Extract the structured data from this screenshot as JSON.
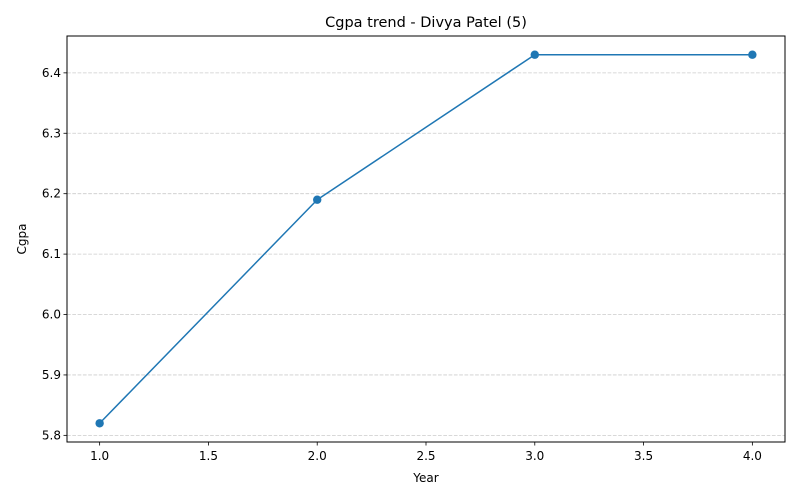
{
  "chart_data": {
    "type": "line",
    "title": "Cgpa trend - Divya Patel (5)",
    "xlabel": "Year",
    "ylabel": "Cgpa",
    "x": [
      1.0,
      2.0,
      3.0,
      4.0
    ],
    "series": [
      {
        "values": [
          5.82,
          6.19,
          6.43,
          6.43
        ],
        "color": "#1f77b4",
        "marker": "circle"
      }
    ],
    "xlim": [
      0.85,
      4.15
    ],
    "ylim": [
      5.789,
      6.461
    ],
    "xticks": [
      1.0,
      1.5,
      2.0,
      2.5,
      3.0,
      3.5,
      4.0
    ],
    "xtick_labels": [
      "1.0",
      "1.5",
      "2.0",
      "2.5",
      "3.0",
      "3.5",
      "4.0"
    ],
    "yticks": [
      5.8,
      5.9,
      6.0,
      6.1,
      6.2,
      6.3,
      6.4
    ],
    "ytick_labels": [
      "5.8",
      "5.9",
      "6.0",
      "6.1",
      "6.2",
      "6.3",
      "6.4"
    ],
    "grid": {
      "axis": "y",
      "style": "dashed",
      "color": "#cccccc"
    }
  }
}
